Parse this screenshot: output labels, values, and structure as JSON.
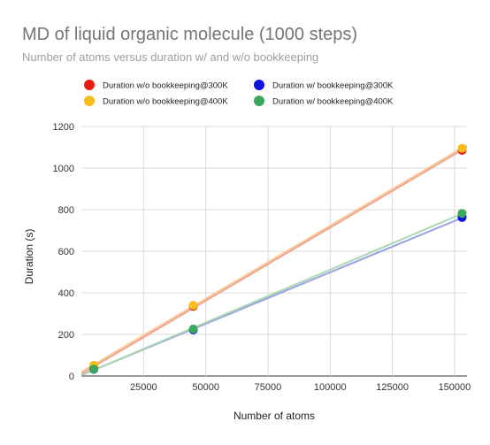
{
  "chart_data": {
    "type": "scatter",
    "title": "MD of liquid organic molecule (1000 steps)",
    "subtitle": "Number of atoms versus duration w/ and w/o bookkeeping",
    "xlabel": "Number of atoms",
    "ylabel": "Duration (s)",
    "xlim": [
      0,
      155000
    ],
    "ylim": [
      0,
      1200
    ],
    "xticks": [
      25000,
      50000,
      75000,
      100000,
      125000,
      150000
    ],
    "yticks": [
      0,
      200,
      400,
      600,
      800,
      1000,
      1200
    ],
    "grid": true,
    "legend_position": "top",
    "trendlines": true,
    "series": [
      {
        "name": "Duration w/o bookkeeping@300K",
        "color": "#ea1c16",
        "trend_color": "#f0a38f",
        "x": [
          5000,
          45000,
          153000
        ],
        "y": [
          40,
          335,
          1085
        ]
      },
      {
        "name": "Duration w/o bookkeeping@400K",
        "color": "#f7bd1d",
        "trend_color": "#f6c89a",
        "x": [
          5000,
          45000,
          153000
        ],
        "y": [
          52,
          340,
          1095
        ]
      },
      {
        "name": "Duration w/ bookkeeping@300K",
        "color": "#1010e0",
        "trend_color": "#9aa0e6",
        "x": [
          5000,
          45000,
          153000
        ],
        "y": [
          32,
          222,
          762
        ]
      },
      {
        "name": "Duration w/ bookkeeping@400K",
        "color": "#3aa85a",
        "trend_color": "#a9d8b0",
        "x": [
          5000,
          45000,
          153000
        ],
        "y": [
          33,
          226,
          782
        ]
      }
    ]
  }
}
